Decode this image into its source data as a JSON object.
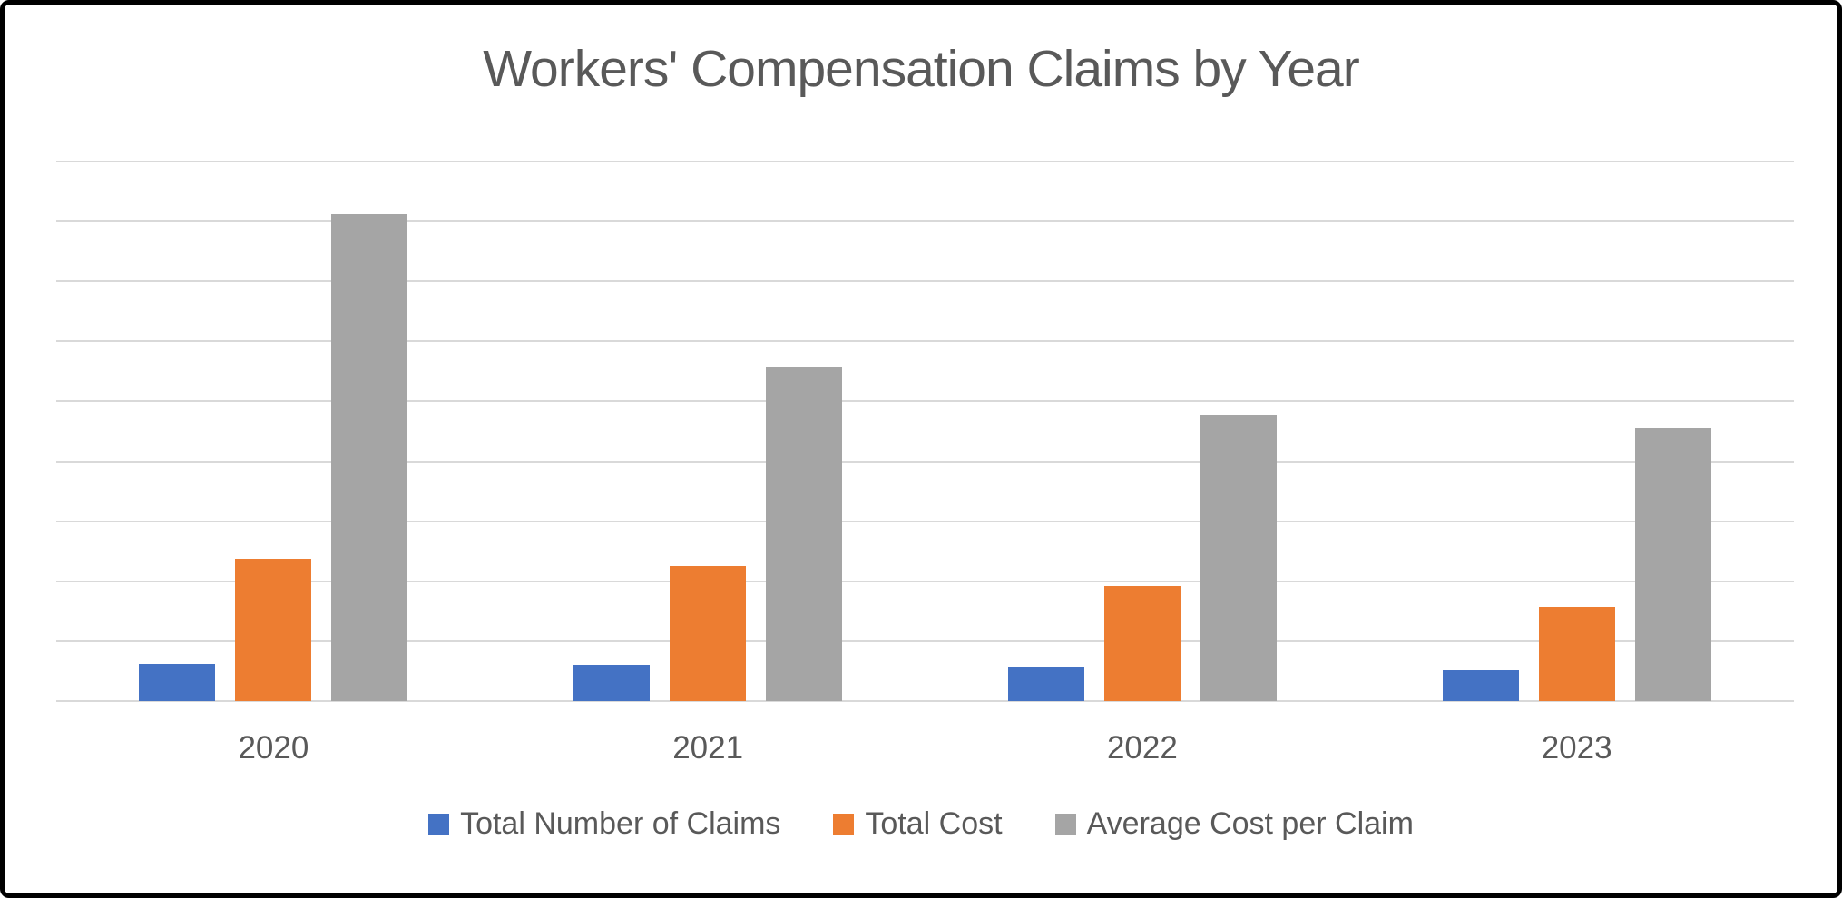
{
  "chart_data": {
    "type": "bar",
    "title": "Workers' Compensation Claims by Year",
    "categories": [
      "2020",
      "2021",
      "2022",
      "2023"
    ],
    "series": [
      {
        "name": "Total Number of Claims",
        "color": "#4472C4",
        "values": [
          31,
          30,
          29,
          26
        ]
      },
      {
        "name": "Total Cost",
        "color": "#ED7D31",
        "values": [
          119,
          113,
          96,
          79
        ]
      },
      {
        "name": "Average Cost per Claim",
        "color": "#A5A5A5",
        "values": [
          406,
          278,
          239,
          228
        ]
      }
    ],
    "xlabel": "",
    "ylabel": "",
    "ylim": [
      0,
      450
    ],
    "gridline_step": 50,
    "y_tick_labels_visible": false,
    "grid": true,
    "legend_position": "bottom",
    "gridline_color": "#D9D9D9",
    "text_color": "#595959",
    "frame_border_color": "#000000"
  }
}
